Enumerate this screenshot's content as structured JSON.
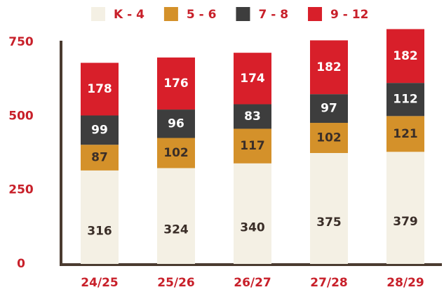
{
  "chart_data": {
    "type": "stacked_bar",
    "categories": [
      "24/25",
      "25/26",
      "26/27",
      "27/28",
      "28/29"
    ],
    "series": [
      {
        "name": "K - 4",
        "color": "#f4f0e4",
        "values": [
          316,
          324,
          340,
          375,
          379
        ]
      },
      {
        "name": "5 - 6",
        "color": "#d4912a",
        "values": [
          87,
          102,
          117,
          102,
          121
        ]
      },
      {
        "name": "7 - 8",
        "color": "#3d3d3d",
        "values": [
          99,
          96,
          83,
          97,
          112
        ]
      },
      {
        "name": "9 - 12",
        "color": "#d81f2a",
        "values": [
          178,
          176,
          174,
          182,
          182
        ]
      }
    ],
    "ylim": [
      0,
      750
    ],
    "yticks": [
      0,
      250,
      500,
      750
    ],
    "grid": false,
    "legend": "top"
  }
}
